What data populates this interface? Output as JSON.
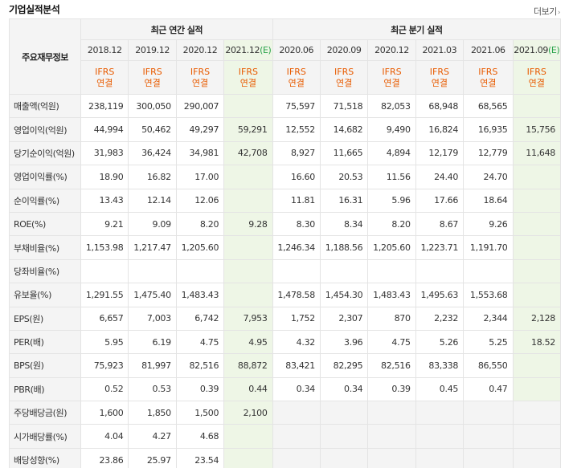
{
  "header": {
    "title": "기업실적분석",
    "more_label": "더보기",
    "more_icon": "chevron-right-icon"
  },
  "table": {
    "label_header": "주요재무정보",
    "group_annual": "최근 연간 실적",
    "group_quarter": "최근 분기 실적",
    "periods": [
      {
        "main": "2018.12",
        "est": ""
      },
      {
        "main": "2019.12",
        "est": ""
      },
      {
        "main": "2020.12",
        "est": ""
      },
      {
        "main": "2021.12",
        "est": "(E)"
      },
      {
        "main": "2020.06",
        "est": ""
      },
      {
        "main": "2020.09",
        "est": ""
      },
      {
        "main": "2020.12",
        "est": ""
      },
      {
        "main": "2021.03",
        "est": ""
      },
      {
        "main": "2021.06",
        "est": ""
      },
      {
        "main": "2021.09",
        "est": "(E)"
      }
    ],
    "basis_line1": "IFRS",
    "basis_line2": "연결",
    "rows": [
      {
        "label": "매출액(억원)",
        "values": [
          "238,119",
          "300,050",
          "290,007",
          "",
          "75,597",
          "71,518",
          "82,053",
          "68,948",
          "68,565",
          ""
        ]
      },
      {
        "label": "영업이익(억원)",
        "values": [
          "44,994",
          "50,462",
          "49,297",
          "59,291",
          "12,552",
          "14,682",
          "9,490",
          "16,824",
          "16,935",
          "15,756"
        ]
      },
      {
        "label": "당기순이익(억원)",
        "values": [
          "31,983",
          "36,424",
          "34,981",
          "42,708",
          "8,927",
          "11,665",
          "4,894",
          "12,179",
          "12,779",
          "11,648"
        ]
      },
      {
        "label": "영업이익률(%)",
        "values": [
          "18.90",
          "16.82",
          "17.00",
          "",
          "16.60",
          "20.53",
          "11.56",
          "24.40",
          "24.70",
          ""
        ]
      },
      {
        "label": "순이익률(%)",
        "values": [
          "13.43",
          "12.14",
          "12.06",
          "",
          "11.81",
          "16.31",
          "5.96",
          "17.66",
          "18.64",
          ""
        ]
      },
      {
        "label": "ROE(%)",
        "values": [
          "9.21",
          "9.09",
          "8.20",
          "9.28",
          "8.30",
          "8.34",
          "8.20",
          "8.67",
          "9.26",
          ""
        ]
      },
      {
        "label": "부채비율(%)",
        "values": [
          "1,153.98",
          "1,217.47",
          "1,205.60",
          "",
          "1,246.34",
          "1,188.56",
          "1,205.60",
          "1,223.71",
          "1,191.70",
          ""
        ]
      },
      {
        "label": "당좌비율(%)",
        "values": [
          "",
          "",
          "",
          "",
          "",
          "",
          "",
          "",
          "",
          ""
        ]
      },
      {
        "label": "유보율(%)",
        "values": [
          "1,291.55",
          "1,475.40",
          "1,483.43",
          "",
          "1,478.58",
          "1,454.30",
          "1,483.43",
          "1,495.63",
          "1,553.68",
          ""
        ]
      },
      {
        "label": "EPS(원)",
        "values": [
          "6,657",
          "7,003",
          "6,742",
          "7,953",
          "1,752",
          "2,307",
          "870",
          "2,232",
          "2,344",
          "2,128"
        ]
      },
      {
        "label": "PER(배)",
        "values": [
          "5.95",
          "6.19",
          "4.75",
          "4.95",
          "4.32",
          "3.96",
          "4.75",
          "5.26",
          "5.25",
          "18.52"
        ]
      },
      {
        "label": "BPS(원)",
        "values": [
          "75,923",
          "81,997",
          "82,516",
          "88,872",
          "83,421",
          "82,295",
          "82,516",
          "83,338",
          "86,550",
          ""
        ]
      },
      {
        "label": "PBR(배)",
        "values": [
          "0.52",
          "0.53",
          "0.39",
          "0.44",
          "0.34",
          "0.34",
          "0.39",
          "0.45",
          "0.47",
          ""
        ]
      },
      {
        "label": "주당배당금(원)",
        "values": [
          "1,600",
          "1,850",
          "1,500",
          "2,100",
          "",
          "",
          "",
          "",
          "",
          ""
        ]
      },
      {
        "label": "시가배당률(%)",
        "values": [
          "4.04",
          "4.27",
          "4.68",
          "",
          "",
          "",
          "",
          "",
          "",
          ""
        ]
      },
      {
        "label": "배당성향(%)",
        "values": [
          "23.86",
          "25.97",
          "23.54",
          "",
          "",
          "",
          "",
          "",
          "",
          ""
        ]
      }
    ]
  },
  "colors": {
    "basis": "#e85b00",
    "estimate_mark": "#2aa34a",
    "estimate_bg": "#eef6e6",
    "header_bg": "#f4f4f4"
  }
}
